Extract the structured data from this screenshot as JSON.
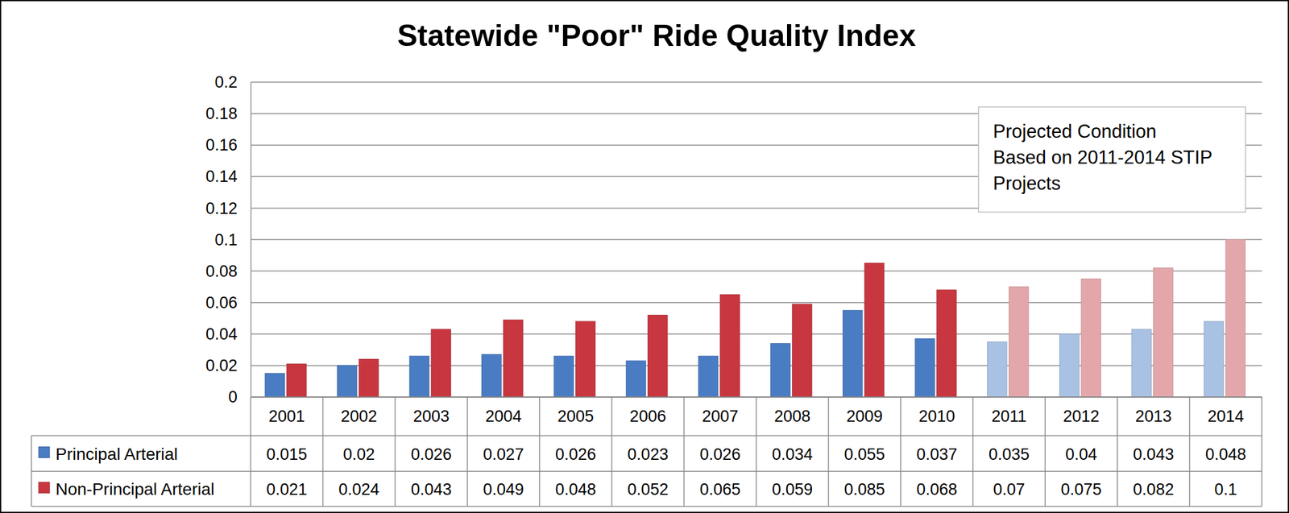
{
  "chart_data": {
    "type": "bar",
    "title": "Statewide \"Poor\" Ride Quality Index",
    "categories": [
      "2001",
      "2002",
      "2003",
      "2004",
      "2005",
      "2006",
      "2007",
      "2008",
      "2009",
      "2010",
      "2011",
      "2012",
      "2013",
      "2014"
    ],
    "series": [
      {
        "name": "Principal Arterial",
        "color": "#4a7cc3",
        "colors": [
          "#4a7cc3",
          "#4a7cc3",
          "#4a7cc3",
          "#4a7cc3",
          "#4a7cc3",
          "#4a7cc3",
          "#4a7cc3",
          "#4a7cc3",
          "#4a7cc3",
          "#4a7cc3",
          "#a9c1e2",
          "#a9c1e2",
          "#a9c1e2",
          "#a9c1e2"
        ],
        "values": [
          0.015,
          0.02,
          0.026,
          0.027,
          0.026,
          0.023,
          0.026,
          0.034,
          0.055,
          0.037,
          0.035,
          0.04,
          0.043,
          0.048
        ]
      },
      {
        "name": "Non-Principal Arterial",
        "color": "#c8363f",
        "colors": [
          "#c8363f",
          "#c8363f",
          "#c8363f",
          "#c8363f",
          "#c8363f",
          "#c8363f",
          "#c8363f",
          "#c8363f",
          "#c8363f",
          "#c8363f",
          "#e3a7ab",
          "#e3a7ab",
          "#e3a7ab",
          "#e3a7ab"
        ],
        "values": [
          0.021,
          0.024,
          0.043,
          0.049,
          0.048,
          0.052,
          0.065,
          0.059,
          0.085,
          0.068,
          0.07,
          0.075,
          0.082,
          0.1
        ]
      }
    ],
    "ylim": [
      0,
      0.2
    ],
    "yticks": [
      0,
      0.02,
      0.04,
      0.06,
      0.08,
      0.1,
      0.12,
      0.14,
      0.16,
      0.18,
      0.2
    ],
    "grid": true,
    "annotation": [
      "Projected Condition",
      "Based on 2011-2014 STIP",
      "Projects"
    ]
  }
}
